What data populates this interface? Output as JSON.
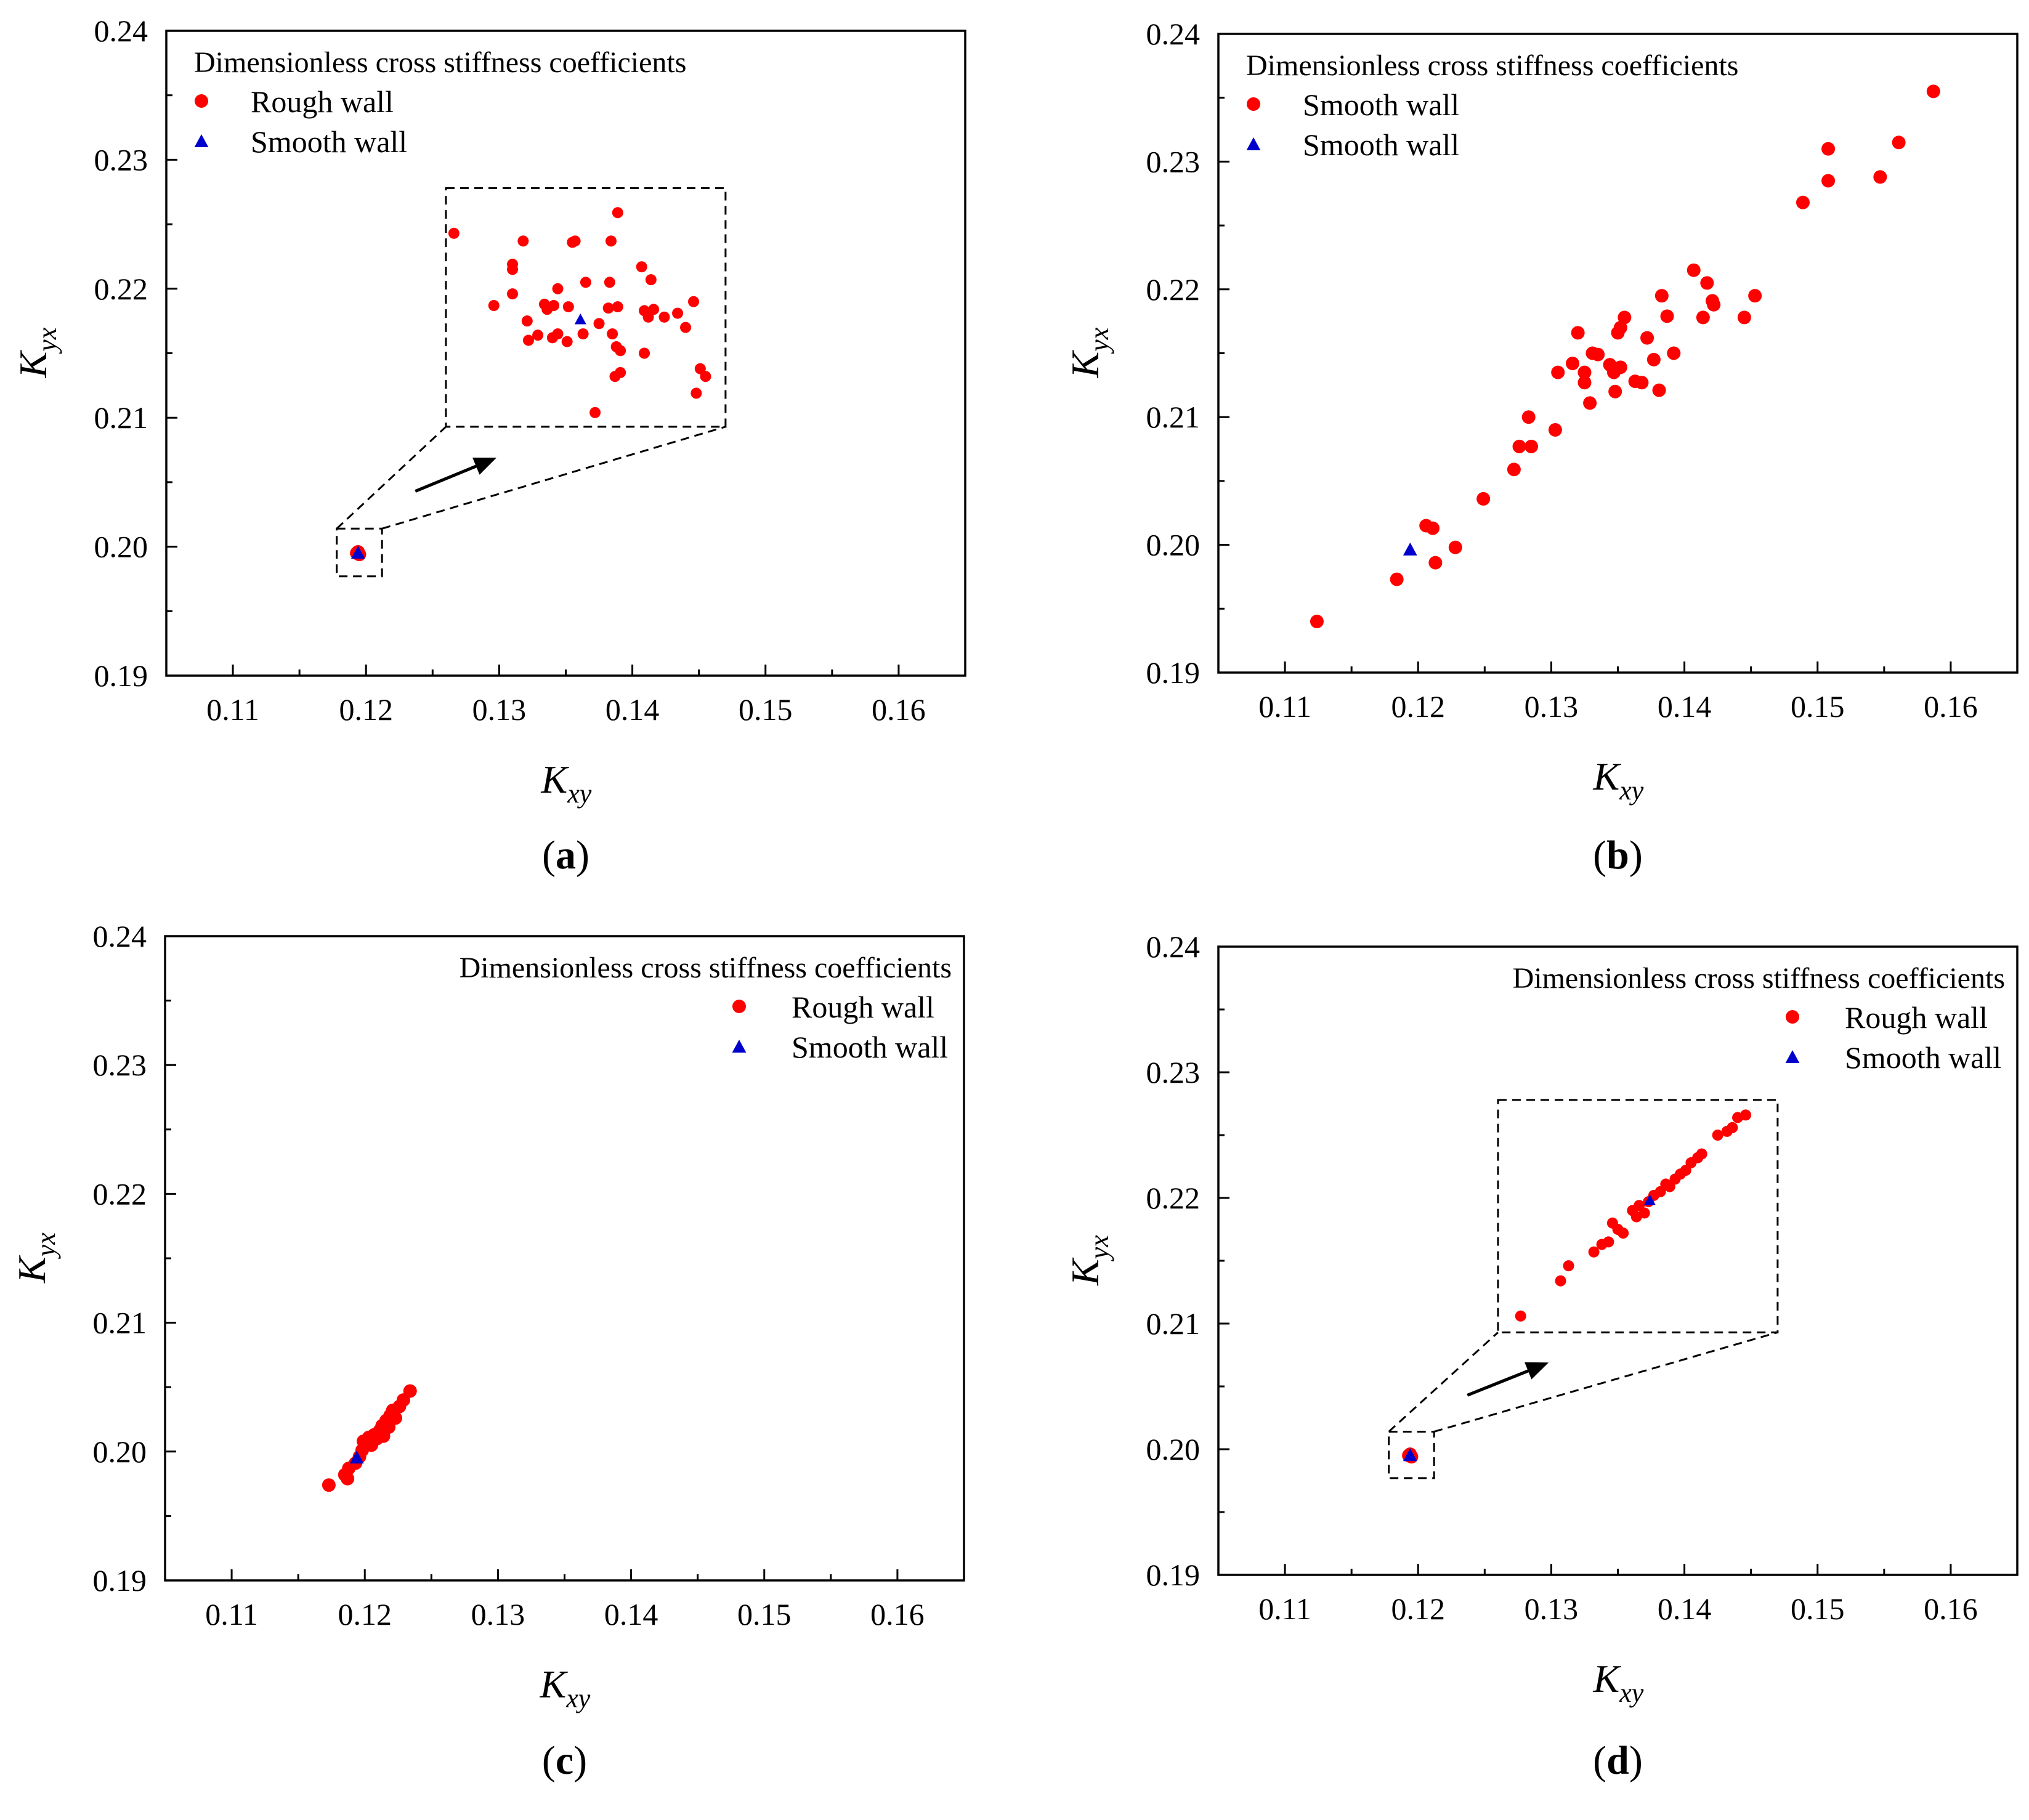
{
  "figure": {
    "colors": {
      "rough": "#ff0000",
      "smooth": "#0000cc",
      "axis": "#000000"
    },
    "symbols": {
      "rough": "circle",
      "smooth": "triangle"
    }
  },
  "chart_data": [
    {
      "panel": "a",
      "type": "scatter",
      "xlabel": "K",
      "xlabel_sub": "xy",
      "ylabel": "K",
      "ylabel_sub": "yx",
      "xlim": [
        0.105,
        0.165
      ],
      "ylim": [
        0.19,
        0.24
      ],
      "xticks": [
        "0.11",
        "0.12",
        "0.13",
        "0.14",
        "0.15",
        "0.16"
      ],
      "yticks": [
        "0.19",
        "0.20",
        "0.21",
        "0.22",
        "0.23",
        "0.24"
      ],
      "legend_title": "Dimensionless cross stiffness coefficients",
      "legend_position": "top-left",
      "series": [
        {
          "name": "Rough wall",
          "marker": "circle",
          "color": "#ff0000",
          "points": [
            [
              0.1193,
              0.1995
            ],
            [
              0.1195,
              0.1994
            ],
            [
              0.1194,
              0.1996
            ]
          ]
        },
        {
          "name": "Smooth wall",
          "marker": "triangle",
          "color": "#0000cc",
          "points": [
            [
              0.1194,
              0.1995
            ]
          ]
        }
      ],
      "inset": {
        "comment": "magnified view of the cluster near (0.1194, 0.1995)",
        "src_x": [
          0.1178,
          0.1212
        ],
        "src_y": [
          0.1977,
          0.2014
        ],
        "dst_x": [
          0.126,
          0.147
        ],
        "dst_y": [
          0.2093,
          0.2278
        ],
        "rough_points": [
          [
            0.1266,
            0.2243
          ],
          [
            0.131,
            0.2219
          ],
          [
            0.131,
            0.2215
          ],
          [
            0.1318,
            0.2237
          ],
          [
            0.1355,
            0.2236
          ],
          [
            0.1357,
            0.2237
          ],
          [
            0.1384,
            0.2237
          ],
          [
            0.1389,
            0.2259
          ],
          [
            0.1296,
            0.2187
          ],
          [
            0.131,
            0.2196
          ],
          [
            0.1321,
            0.2175
          ],
          [
            0.1334,
            0.2188
          ],
          [
            0.1336,
            0.2184
          ],
          [
            0.1341,
            0.2187
          ],
          [
            0.1344,
            0.22
          ],
          [
            0.1352,
            0.2186
          ],
          [
            0.1365,
            0.2205
          ],
          [
            0.1383,
            0.2205
          ],
          [
            0.1382,
            0.2185
          ],
          [
            0.1389,
            0.2186
          ],
          [
            0.1407,
            0.2217
          ],
          [
            0.1414,
            0.2207
          ],
          [
            0.1409,
            0.2183
          ],
          [
            0.1412,
            0.2178
          ],
          [
            0.1416,
            0.2184
          ],
          [
            0.1424,
            0.2178
          ],
          [
            0.1434,
            0.2181
          ],
          [
            0.144,
            0.217
          ],
          [
            0.1446,
            0.219
          ],
          [
            0.1322,
            0.216
          ],
          [
            0.1329,
            0.2164
          ],
          [
            0.134,
            0.2162
          ],
          [
            0.1344,
            0.2165
          ],
          [
            0.1351,
            0.2159
          ],
          [
            0.1363,
            0.2165
          ],
          [
            0.1375,
            0.2173
          ],
          [
            0.1385,
            0.2165
          ],
          [
            0.1388,
            0.2155
          ],
          [
            0.1391,
            0.2152
          ],
          [
            0.1409,
            0.215
          ],
          [
            0.1448,
            0.2119
          ],
          [
            0.1451,
            0.2138
          ],
          [
            0.1455,
            0.2132
          ],
          [
            0.1391,
            0.2135
          ],
          [
            0.1387,
            0.2132
          ],
          [
            0.1372,
            0.2104
          ]
        ],
        "smooth_point": [
          0.1361,
          0.2176
        ]
      }
    },
    {
      "panel": "b",
      "type": "scatter",
      "xlabel": "K",
      "xlabel_sub": "xy",
      "ylabel": "K",
      "ylabel_sub": "yx",
      "xlim": [
        0.105,
        0.165
      ],
      "ylim": [
        0.19,
        0.24
      ],
      "xticks": [
        "0.11",
        "0.12",
        "0.13",
        "0.14",
        "0.15",
        "0.16"
      ],
      "yticks": [
        "0.19",
        "0.20",
        "0.21",
        "0.22",
        "0.23",
        "0.24"
      ],
      "legend_title": "Dimensionless cross stiffness coefficients",
      "legend_position": "top-left",
      "series": [
        {
          "name": "Smooth wall",
          "marker": "circle",
          "color": "#ff0000",
          "points": [
            [
              0.1124,
              0.194
            ],
            [
              0.1184,
              0.1973
            ],
            [
              0.1213,
              0.1986
            ],
            [
              0.1228,
              0.1998
            ],
            [
              0.1206,
              0.2015
            ],
            [
              0.1211,
              0.2013
            ],
            [
              0.1249,
              0.2036
            ],
            [
              0.1272,
              0.2059
            ],
            [
              0.1276,
              0.2077
            ],
            [
              0.1285,
              0.2077
            ],
            [
              0.1283,
              0.21
            ],
            [
              0.1303,
              0.209
            ],
            [
              0.1305,
              0.2135
            ],
            [
              0.1316,
              0.2142
            ],
            [
              0.132,
              0.2166
            ],
            [
              0.1325,
              0.2135
            ],
            [
              0.1325,
              0.2127
            ],
            [
              0.1329,
              0.2111
            ],
            [
              0.1331,
              0.215
            ],
            [
              0.1335,
              0.2149
            ],
            [
              0.1344,
              0.2141
            ],
            [
              0.1347,
              0.2135
            ],
            [
              0.1348,
              0.212
            ],
            [
              0.135,
              0.2166
            ],
            [
              0.1352,
              0.217
            ],
            [
              0.1352,
              0.2139
            ],
            [
              0.1355,
              0.2178
            ],
            [
              0.1363,
              0.2128
            ],
            [
              0.1368,
              0.2127
            ],
            [
              0.1372,
              0.2162
            ],
            [
              0.1377,
              0.2145
            ],
            [
              0.1381,
              0.2121
            ],
            [
              0.1383,
              0.2195
            ],
            [
              0.1387,
              0.2179
            ],
            [
              0.1392,
              0.215
            ],
            [
              0.1407,
              0.2215
            ],
            [
              0.1414,
              0.2178
            ],
            [
              0.1417,
              0.2205
            ],
            [
              0.1421,
              0.2191
            ],
            [
              0.1422,
              0.2188
            ],
            [
              0.1445,
              0.2178
            ],
            [
              0.1453,
              0.2195
            ],
            [
              0.1489,
              0.2268
            ],
            [
              0.1508,
              0.2285
            ],
            [
              0.1508,
              0.231
            ],
            [
              0.1547,
              0.2288
            ],
            [
              0.1561,
              0.2315
            ],
            [
              0.1587,
              0.2355
            ]
          ]
        },
        {
          "name": "Smooth wall",
          "marker": "triangle",
          "color": "#0000cc",
          "points": [
            [
              0.1194,
              0.1996
            ]
          ]
        }
      ]
    },
    {
      "panel": "c",
      "type": "scatter",
      "xlabel": "K",
      "xlabel_sub": "xy",
      "ylabel": "K",
      "ylabel_sub": "yx",
      "xlim": [
        0.105,
        0.165
      ],
      "ylim": [
        0.19,
        0.24
      ],
      "xticks": [
        "0.11",
        "0.12",
        "0.13",
        "0.14",
        "0.15",
        "0.16"
      ],
      "yticks": [
        "0.19",
        "0.20",
        "0.21",
        "0.22",
        "0.23",
        "0.24"
      ],
      "legend_title": "Dimensionless cross stiffness coefficients",
      "legend_position": "top-right",
      "series": [
        {
          "name": "Rough wall",
          "marker": "circle",
          "color": "#ff0000",
          "points": [
            [
              0.1173,
              0.1974
            ],
            [
              0.1185,
              0.1982
            ],
            [
              0.1187,
              0.1979
            ],
            [
              0.1188,
              0.1987
            ],
            [
              0.1193,
              0.1991
            ],
            [
              0.1196,
              0.1996
            ],
            [
              0.1198,
              0.2001
            ],
            [
              0.1199,
              0.2008
            ],
            [
              0.1201,
              0.2006
            ],
            [
              0.1203,
              0.2011
            ],
            [
              0.1205,
              0.2005
            ],
            [
              0.1207,
              0.2013
            ],
            [
              0.1209,
              0.201
            ],
            [
              0.1211,
              0.2016
            ],
            [
              0.1213,
              0.202
            ],
            [
              0.1214,
              0.2012
            ],
            [
              0.1216,
              0.2024
            ],
            [
              0.1218,
              0.2019
            ],
            [
              0.1219,
              0.2028
            ],
            [
              0.1221,
              0.2032
            ],
            [
              0.1223,
              0.2026
            ],
            [
              0.1226,
              0.2035
            ],
            [
              0.1229,
              0.204
            ],
            [
              0.1234,
              0.2047
            ]
          ]
        },
        {
          "name": "Smooth wall",
          "marker": "triangle",
          "color": "#0000cc",
          "points": [
            [
              0.1194,
              0.1995
            ]
          ]
        }
      ]
    },
    {
      "panel": "d",
      "type": "scatter",
      "xlabel": "K",
      "xlabel_sub": "xy",
      "ylabel": "K",
      "ylabel_sub": "yx",
      "xlim": [
        0.105,
        0.165
      ],
      "ylim": [
        0.19,
        0.24
      ],
      "xticks": [
        "0.11",
        "0.12",
        "0.13",
        "0.14",
        "0.15",
        "0.16"
      ],
      "yticks": [
        "0.19",
        "0.20",
        "0.21",
        "0.22",
        "0.23",
        "0.24"
      ],
      "legend_title": "Dimensionless cross stiffness coefficients",
      "legend_position": "top-right",
      "series": [
        {
          "name": "Rough wall",
          "marker": "circle",
          "color": "#ff0000",
          "points": [
            [
              0.1193,
              0.1995
            ],
            [
              0.1195,
              0.1994
            ],
            [
              0.1194,
              0.1996
            ]
          ]
        },
        {
          "name": "Smooth wall",
          "marker": "triangle",
          "color": "#0000cc",
          "points": [
            [
              0.1194,
              0.1995
            ]
          ]
        }
      ],
      "inset": {
        "comment": "magnified view of the cluster near (0.1194, 0.1995)",
        "src_x": [
          0.1178,
          0.1212
        ],
        "src_y": [
          0.1977,
          0.2014
        ],
        "dst_x": [
          0.126,
          0.147
        ],
        "dst_y": [
          0.2093,
          0.2278
        ],
        "rough_points": [
          [
            0.1277,
            0.2106
          ],
          [
            0.1307,
            0.2134
          ],
          [
            0.1313,
            0.2146
          ],
          [
            0.1332,
            0.2157
          ],
          [
            0.1338,
            0.2163
          ],
          [
            0.1343,
            0.2165
          ],
          [
            0.1346,
            0.218
          ],
          [
            0.135,
            0.2175
          ],
          [
            0.1354,
            0.2172
          ],
          [
            0.1361,
            0.219
          ],
          [
            0.1364,
            0.2185
          ],
          [
            0.1366,
            0.2194
          ],
          [
            0.137,
            0.2188
          ],
          [
            0.1373,
            0.2197
          ],
          [
            0.1377,
            0.2202
          ],
          [
            0.1382,
            0.2205
          ],
          [
            0.1386,
            0.2211
          ],
          [
            0.1389,
            0.2209
          ],
          [
            0.1393,
            0.2215
          ],
          [
            0.1397,
            0.2219
          ],
          [
            0.1401,
            0.2222
          ],
          [
            0.1405,
            0.2228
          ],
          [
            0.141,
            0.2232
          ],
          [
            0.1413,
            0.2235
          ],
          [
            0.1425,
            0.225
          ],
          [
            0.1432,
            0.2253
          ],
          [
            0.1436,
            0.2256
          ],
          [
            0.144,
            0.2264
          ],
          [
            0.1446,
            0.2266
          ]
        ],
        "smooth_point": [
          0.1374,
          0.2198
        ]
      }
    }
  ],
  "panel_labels": [
    {
      "open": "(",
      "letter": "a",
      "close": ")"
    },
    {
      "open": "(",
      "letter": "b",
      "close": ")"
    },
    {
      "open": "(",
      "letter": "c",
      "close": ")"
    },
    {
      "open": "(",
      "letter": "d",
      "close": ")"
    }
  ]
}
